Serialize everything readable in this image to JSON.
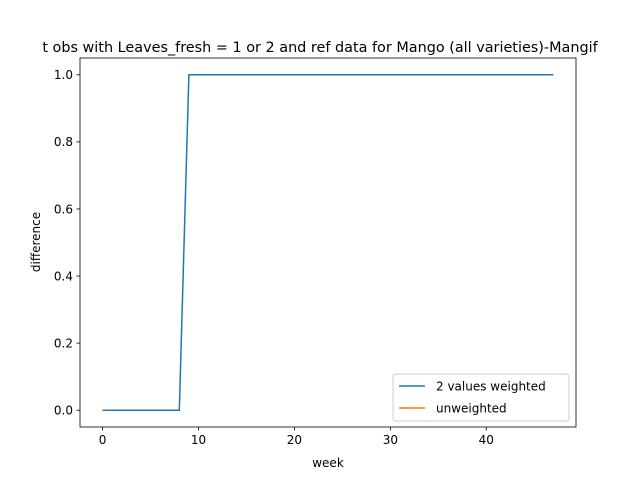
{
  "chart_data": {
    "type": "line",
    "title": "t obs with Leaves_fresh = 1 or 2 and ref data for Mango (all varieties)-Mangif",
    "xlabel": "week",
    "ylabel": "difference",
    "xlim": [
      -2.35,
      49.35
    ],
    "ylim": [
      -0.05,
      1.05
    ],
    "xticks": [
      0,
      10,
      20,
      30,
      40
    ],
    "yticks": [
      0.0,
      0.2,
      0.4,
      0.6,
      0.8,
      1.0
    ],
    "ytick_labels": [
      "0.0",
      "0.2",
      "0.4",
      "0.6",
      "0.8",
      "1.0"
    ],
    "grid": false,
    "legend_position": "lower-right",
    "series": [
      {
        "name": "2 values weighted",
        "color": "#1f77b4",
        "x": [
          0,
          8,
          9,
          47
        ],
        "y": [
          0,
          0,
          1,
          1
        ]
      },
      {
        "name": "unweighted",
        "color": "#ff7f0e",
        "x": [],
        "y": []
      }
    ]
  }
}
